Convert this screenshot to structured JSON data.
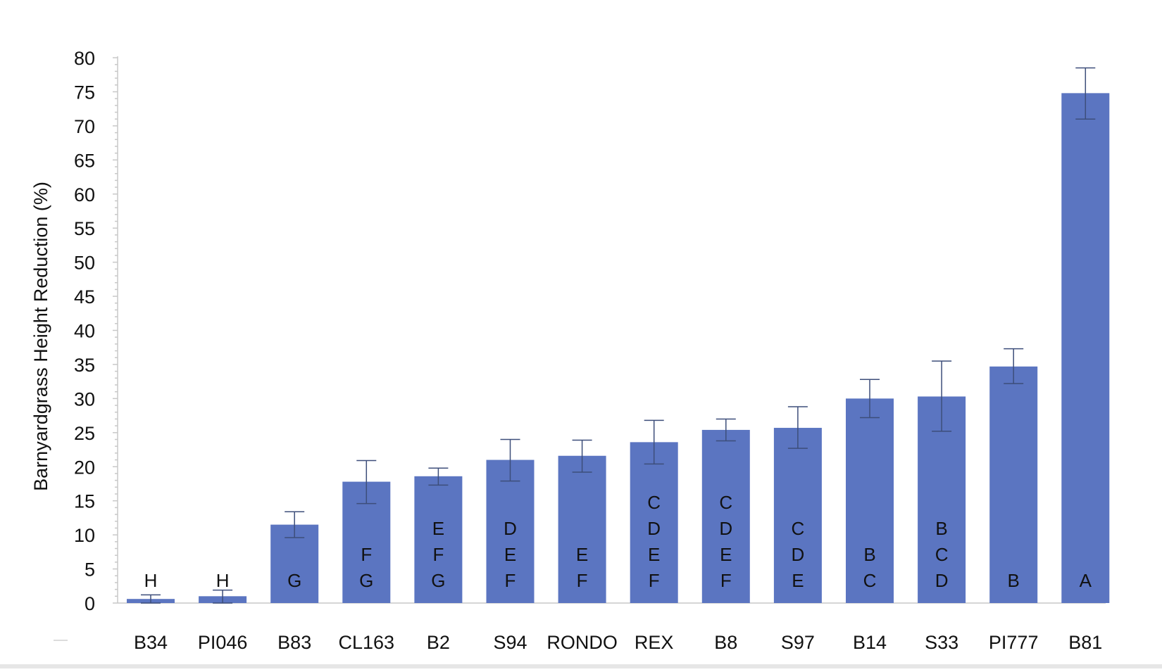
{
  "chart_data": {
    "type": "bar",
    "title": "",
    "xlabel": "",
    "ylabel": "Barnyardgrass Height Reduction (%)",
    "ylim": [
      0,
      80
    ],
    "ytick_step": 5,
    "yticks": [
      "0",
      "5",
      "10",
      "15",
      "20",
      "25",
      "30",
      "35",
      "40",
      "45",
      "50",
      "55",
      "60",
      "65",
      "70",
      "75",
      "80"
    ],
    "minor_ticks_per_major": 4,
    "grid": false,
    "legend": "none",
    "bar_color": "#5b75c1",
    "error_bar_color": "#3d4e7a",
    "axis_color": "#c8c8c8",
    "categories": [
      "B34",
      "PI046",
      "B83",
      "CL163",
      "B2",
      "S94",
      "RONDO",
      "REX",
      "B8",
      "S97",
      "B14",
      "S33",
      "PI777",
      "B81"
    ],
    "values": [
      0.6,
      1.0,
      11.5,
      17.8,
      18.6,
      21.0,
      21.6,
      23.6,
      25.4,
      25.7,
      30.0,
      30.3,
      34.7,
      74.8
    ],
    "error_low": [
      0.0,
      0.0,
      9.6,
      14.6,
      17.3,
      17.9,
      19.2,
      20.4,
      23.8,
      22.7,
      27.2,
      25.2,
      32.2,
      71.0
    ],
    "error_high": [
      1.2,
      1.9,
      13.4,
      20.9,
      19.8,
      24.0,
      23.9,
      26.8,
      27.0,
      28.8,
      32.8,
      35.5,
      37.3,
      78.5
    ],
    "significance_letters": [
      [
        "H"
      ],
      [
        "H"
      ],
      [
        "G"
      ],
      [
        "F",
        "G"
      ],
      [
        "E",
        "F",
        "G"
      ],
      [
        "D",
        "E",
        "F"
      ],
      [
        "E",
        "F"
      ],
      [
        "C",
        "D",
        "E",
        "F"
      ],
      [
        "C",
        "D",
        "E",
        "F"
      ],
      [
        "C",
        "D",
        "E"
      ],
      [
        "B",
        "C"
      ],
      [
        "B",
        "C",
        "D"
      ],
      [
        "B"
      ],
      [
        "A"
      ]
    ]
  }
}
